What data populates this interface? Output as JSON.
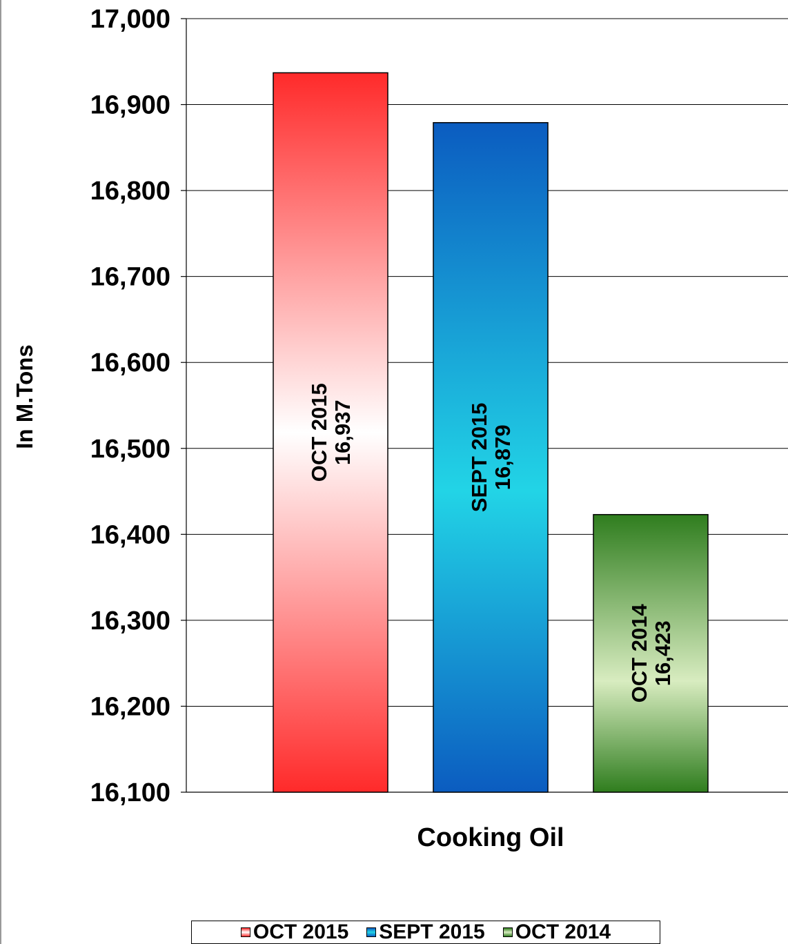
{
  "chart_data": {
    "type": "bar",
    "categories": [
      "Cooking Oil"
    ],
    "series": [
      {
        "name": "OCT 2015",
        "values": [
          16937
        ],
        "data_label_period": "OCT 2015",
        "data_label_value": "16,937",
        "color": "#ff2a2a"
      },
      {
        "name": "SEPT 2015",
        "values": [
          16879
        ],
        "data_label_period": "SEPT 2015",
        "data_label_value": "16,879",
        "color": "#0b63c8"
      },
      {
        "name": "OCT 2014",
        "values": [
          16423
        ],
        "data_label_period": "OCT 2014",
        "data_label_value": "16,423",
        "color": "#2f7d1e"
      }
    ],
    "xlabel": "Cooking Oil",
    "ylabel": "In M.Tons",
    "ylim": [
      16100,
      17000
    ],
    "yticks": [
      16100,
      16200,
      16300,
      16400,
      16500,
      16600,
      16700,
      16800,
      16900,
      17000
    ],
    "ytick_labels": [
      "16,100",
      "16,200",
      "16,300",
      "16,400",
      "16,500",
      "16,600",
      "16,700",
      "16,800",
      "16,900",
      "17,000"
    ],
    "grid": true,
    "legend_position": "bottom"
  }
}
